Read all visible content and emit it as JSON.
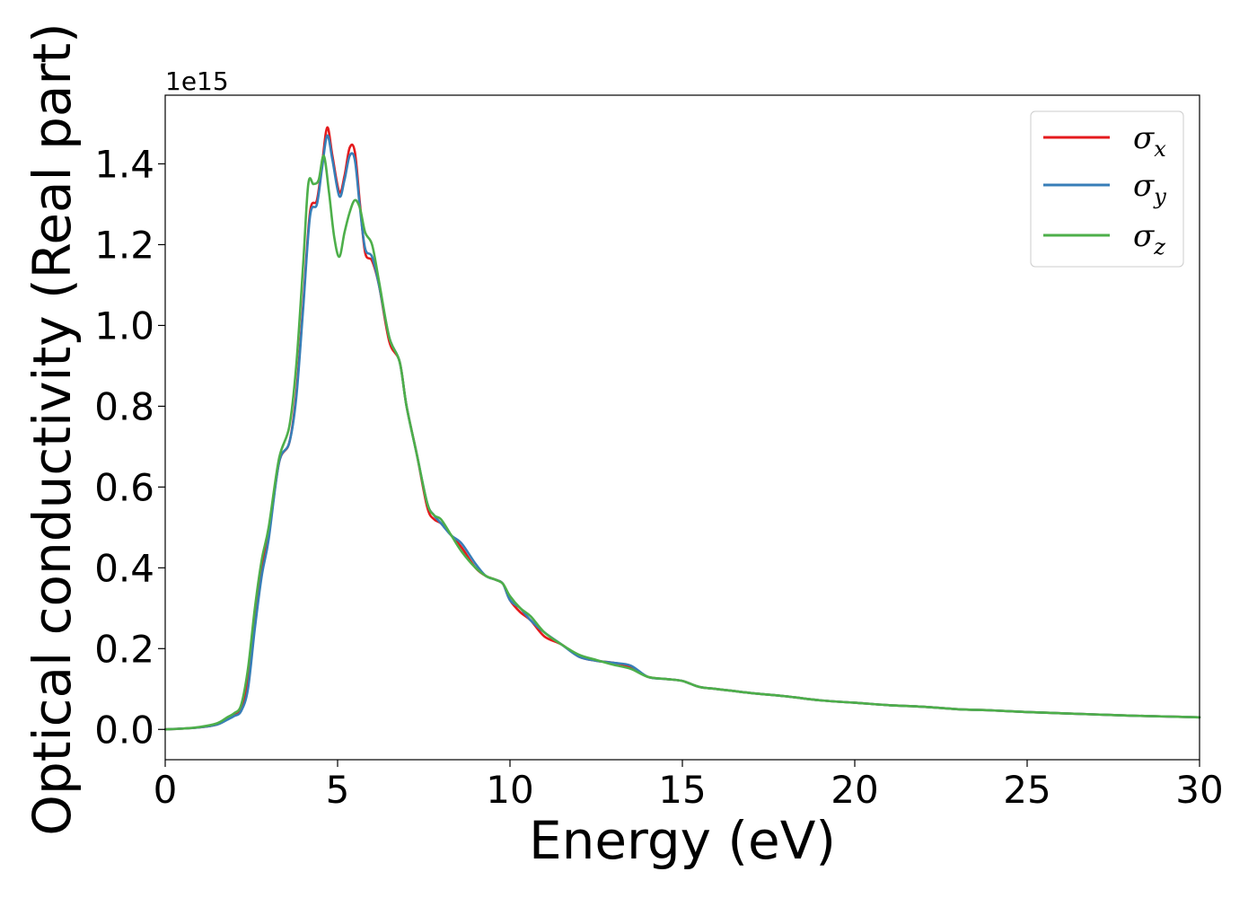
{
  "chart_data": {
    "type": "line",
    "title": "",
    "xlabel": "Energy (eV)",
    "ylabel": "Optical conductivity (Real part)",
    "y_offset_label": "1e15",
    "xlim": [
      0,
      30
    ],
    "ylim": [
      -0.075,
      1.57
    ],
    "xticks": [
      0,
      5,
      10,
      15,
      20,
      25,
      30
    ],
    "xtick_labels": [
      "0",
      "5",
      "10",
      "15",
      "20",
      "25",
      "30"
    ],
    "yticks": [
      0.0,
      0.2,
      0.4,
      0.6,
      0.8,
      1.0,
      1.2,
      1.4
    ],
    "ytick_labels": [
      "0.0",
      "0.2",
      "0.4",
      "0.6",
      "0.8",
      "1.0",
      "1.2",
      "1.4"
    ],
    "grid": false,
    "legend_position": "top-right",
    "series": [
      {
        "name": "σx",
        "legend_main": "σ",
        "legend_sub": "x",
        "color": "#e41a1c",
        "x": [
          0,
          0.5,
          1.0,
          1.5,
          1.8,
          2.0,
          2.2,
          2.4,
          2.6,
          2.8,
          3.0,
          3.3,
          3.6,
          3.8,
          4.0,
          4.2,
          4.4,
          4.55,
          4.7,
          4.85,
          5.05,
          5.2,
          5.35,
          5.5,
          5.65,
          5.8,
          6.0,
          6.2,
          6.5,
          6.8,
          7.0,
          7.3,
          7.6,
          7.8,
          8.0,
          8.3,
          8.6,
          9.0,
          9.3,
          9.6,
          9.8,
          10.0,
          10.3,
          10.6,
          11.0,
          11.5,
          12.0,
          12.5,
          13.0,
          13.5,
          14.0,
          14.5,
          15.0,
          15.5,
          16.0,
          17.0,
          18.0,
          19.0,
          20.0,
          21.0,
          22.0,
          23.0,
          24.0,
          25.0,
          26.0,
          27.0,
          28.0,
          29.0,
          30.0
        ],
        "values": [
          0.0,
          0.002,
          0.005,
          0.012,
          0.025,
          0.035,
          0.05,
          0.12,
          0.28,
          0.4,
          0.48,
          0.66,
          0.71,
          0.83,
          1.05,
          1.28,
          1.31,
          1.4,
          1.49,
          1.42,
          1.33,
          1.37,
          1.44,
          1.43,
          1.3,
          1.18,
          1.16,
          1.1,
          0.96,
          0.91,
          0.8,
          0.68,
          0.55,
          0.52,
          0.51,
          0.48,
          0.45,
          0.4,
          0.38,
          0.37,
          0.36,
          0.32,
          0.29,
          0.27,
          0.23,
          0.21,
          0.18,
          0.17,
          0.165,
          0.155,
          0.13,
          0.125,
          0.12,
          0.105,
          0.1,
          0.09,
          0.082,
          0.072,
          0.066,
          0.06,
          0.056,
          0.05,
          0.047,
          0.043,
          0.04,
          0.037,
          0.034,
          0.032,
          0.03
        ]
      },
      {
        "name": "σy",
        "legend_main": "σ",
        "legend_sub": "y",
        "color": "#377eb8",
        "x": [
          0,
          0.5,
          1.0,
          1.5,
          1.8,
          2.0,
          2.2,
          2.4,
          2.6,
          2.8,
          3.0,
          3.3,
          3.6,
          3.8,
          4.0,
          4.2,
          4.4,
          4.55,
          4.7,
          4.85,
          5.05,
          5.2,
          5.35,
          5.5,
          5.65,
          5.8,
          6.0,
          6.2,
          6.5,
          6.8,
          7.0,
          7.3,
          7.6,
          7.8,
          8.0,
          8.3,
          8.6,
          9.0,
          9.3,
          9.6,
          9.8,
          10.0,
          10.3,
          10.6,
          11.0,
          11.5,
          12.0,
          12.5,
          13.0,
          13.5,
          14.0,
          14.5,
          15.0,
          15.5,
          16.0,
          17.0,
          18.0,
          19.0,
          20.0,
          21.0,
          22.0,
          23.0,
          24.0,
          25.0,
          26.0,
          27.0,
          28.0,
          29.0,
          30.0
        ],
        "values": [
          0.0,
          0.002,
          0.005,
          0.012,
          0.024,
          0.033,
          0.045,
          0.1,
          0.25,
          0.38,
          0.47,
          0.66,
          0.71,
          0.82,
          1.04,
          1.27,
          1.3,
          1.39,
          1.47,
          1.41,
          1.32,
          1.36,
          1.42,
          1.41,
          1.29,
          1.19,
          1.17,
          1.1,
          0.97,
          0.91,
          0.8,
          0.68,
          0.56,
          0.53,
          0.51,
          0.48,
          0.46,
          0.41,
          0.38,
          0.37,
          0.36,
          0.32,
          0.3,
          0.27,
          0.24,
          0.21,
          0.18,
          0.17,
          0.165,
          0.158,
          0.13,
          0.125,
          0.12,
          0.105,
          0.1,
          0.09,
          0.082,
          0.072,
          0.066,
          0.06,
          0.056,
          0.05,
          0.047,
          0.043,
          0.04,
          0.037,
          0.034,
          0.032,
          0.03
        ]
      },
      {
        "name": "σz",
        "legend_main": "σ",
        "legend_sub": "z",
        "color": "#4daf4a",
        "x": [
          0,
          0.5,
          1.0,
          1.5,
          1.8,
          2.0,
          2.2,
          2.4,
          2.6,
          2.8,
          3.0,
          3.3,
          3.6,
          3.8,
          4.0,
          4.15,
          4.3,
          4.45,
          4.6,
          4.75,
          4.9,
          5.05,
          5.2,
          5.35,
          5.5,
          5.65,
          5.8,
          6.0,
          6.2,
          6.5,
          6.8,
          7.0,
          7.3,
          7.6,
          7.8,
          8.0,
          8.3,
          8.6,
          9.0,
          9.3,
          9.6,
          9.8,
          10.0,
          10.3,
          10.6,
          11.0,
          11.5,
          12.0,
          12.5,
          13.0,
          13.5,
          14.0,
          14.5,
          15.0,
          15.5,
          16.0,
          17.0,
          18.0,
          19.0,
          20.0,
          21.0,
          22.0,
          23.0,
          24.0,
          25.0,
          26.0,
          27.0,
          28.0,
          29.0,
          30.0
        ],
        "values": [
          0.0,
          0.002,
          0.006,
          0.015,
          0.03,
          0.04,
          0.06,
          0.15,
          0.3,
          0.42,
          0.5,
          0.67,
          0.75,
          0.9,
          1.15,
          1.35,
          1.35,
          1.36,
          1.42,
          1.33,
          1.22,
          1.17,
          1.23,
          1.28,
          1.31,
          1.29,
          1.23,
          1.2,
          1.11,
          0.97,
          0.91,
          0.8,
          0.68,
          0.56,
          0.53,
          0.52,
          0.48,
          0.44,
          0.4,
          0.38,
          0.37,
          0.36,
          0.33,
          0.3,
          0.28,
          0.24,
          0.21,
          0.185,
          0.172,
          0.16,
          0.15,
          0.13,
          0.125,
          0.12,
          0.105,
          0.1,
          0.09,
          0.082,
          0.072,
          0.066,
          0.06,
          0.056,
          0.05,
          0.047,
          0.043,
          0.04,
          0.037,
          0.034,
          0.032,
          0.03
        ]
      }
    ]
  }
}
